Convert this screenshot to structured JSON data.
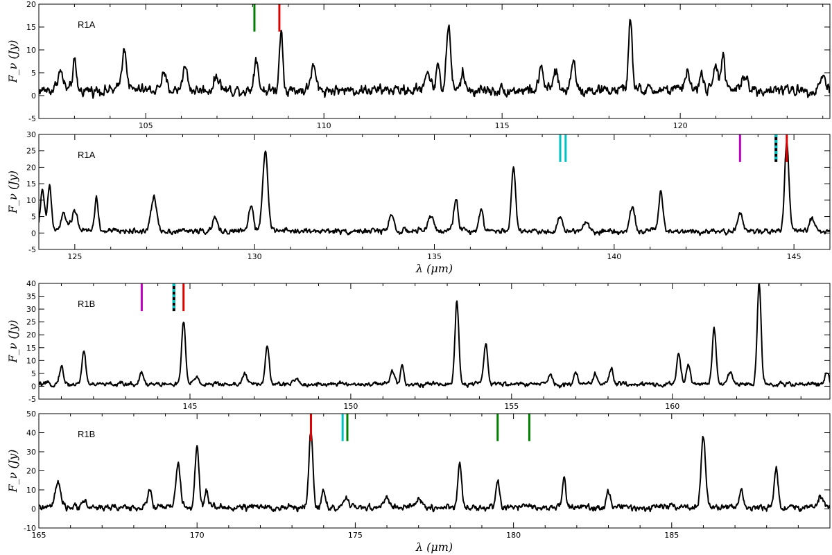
{
  "chart_data": [
    {
      "type": "line",
      "label": "R1A",
      "xlim": [
        102,
        124.2
      ],
      "ylim": [
        -5,
        20
      ],
      "xticks": [
        105,
        110,
        115,
        120
      ],
      "yticks": [
        -5,
        0,
        5,
        10,
        15,
        20
      ],
      "ylabel": "F_ν (Jy)",
      "xlabel": "",
      "baseline": 1.2,
      "noise": 1.1,
      "peaks": [
        [
          102.6,
          4,
          0.08
        ],
        [
          103.0,
          6,
          0.05
        ],
        [
          104.4,
          9,
          0.07
        ],
        [
          105.5,
          3,
          0.08
        ],
        [
          106.1,
          5,
          0.07
        ],
        [
          107.0,
          3,
          0.08
        ],
        [
          108.1,
          7,
          0.06
        ],
        [
          108.8,
          13,
          0.05
        ],
        [
          109.7,
          5,
          0.07
        ],
        [
          112.9,
          4,
          0.08
        ],
        [
          113.2,
          6,
          0.05
        ],
        [
          113.5,
          14,
          0.06
        ],
        [
          113.9,
          4,
          0.05
        ],
        [
          116.1,
          5,
          0.06
        ],
        [
          116.5,
          4,
          0.06
        ],
        [
          117.0,
          7,
          0.06
        ],
        [
          118.6,
          16,
          0.05
        ],
        [
          120.2,
          4,
          0.07
        ],
        [
          120.6,
          4,
          0.05
        ],
        [
          121.0,
          6,
          0.06
        ],
        [
          121.2,
          8,
          0.05
        ],
        [
          121.8,
          3,
          0.08
        ],
        [
          124.0,
          3,
          0.08
        ]
      ],
      "markers": [
        {
          "x": 108.05,
          "color": "#008000"
        },
        {
          "x": 108.75,
          "color": "#e00000"
        }
      ]
    },
    {
      "type": "line",
      "label": "R1A",
      "xlim": [
        124,
        146
      ],
      "ylim": [
        -5,
        30
      ],
      "xticks": [
        125,
        130,
        135,
        140,
        145
      ],
      "yticks": [
        -5,
        0,
        5,
        10,
        15,
        20,
        25,
        30
      ],
      "ylabel": "F_ν (Jy)",
      "xlabel": "λ (μm)",
      "baseline": 0.6,
      "noise": 0.8,
      "peaks": [
        [
          124.1,
          12,
          0.06
        ],
        [
          124.3,
          14,
          0.05
        ],
        [
          124.7,
          5,
          0.08
        ],
        [
          125.0,
          6,
          0.08
        ],
        [
          125.6,
          10,
          0.05
        ],
        [
          127.2,
          10,
          0.08
        ],
        [
          128.9,
          4,
          0.06
        ],
        [
          129.9,
          8,
          0.06
        ],
        [
          130.3,
          25,
          0.07
        ],
        [
          133.8,
          5,
          0.07
        ],
        [
          134.9,
          5,
          0.07
        ],
        [
          135.6,
          10,
          0.06
        ],
        [
          136.3,
          7,
          0.06
        ],
        [
          137.2,
          19,
          0.06
        ],
        [
          138.5,
          4,
          0.07
        ],
        [
          139.2,
          3,
          0.08
        ],
        [
          140.5,
          7,
          0.07
        ],
        [
          141.3,
          12,
          0.06
        ],
        [
          143.5,
          6,
          0.06
        ],
        [
          144.8,
          27,
          0.06
        ],
        [
          145.5,
          4,
          0.07
        ]
      ],
      "markers": [
        {
          "x": 138.5,
          "color": "#00c0c0"
        },
        {
          "x": 138.65,
          "color": "#00c0c0"
        },
        {
          "x": 143.5,
          "color": "#c000c0"
        },
        {
          "x": 144.5,
          "color": "dashed"
        },
        {
          "x": 144.8,
          "color": "#e00000"
        }
      ]
    },
    {
      "type": "line",
      "label": "R1B",
      "xlim": [
        140.3,
        164.9
      ],
      "ylim": [
        -5,
        40
      ],
      "xticks": [
        145,
        150,
        155,
        160
      ],
      "yticks": [
        -5,
        0,
        5,
        10,
        15,
        20,
        25,
        30,
        35,
        40
      ],
      "ylabel": "F_ν (Jy)",
      "xlabel": "",
      "baseline": 0.8,
      "noise": 0.8,
      "peaks": [
        [
          141.0,
          7,
          0.06
        ],
        [
          141.7,
          13,
          0.06
        ],
        [
          143.5,
          5,
          0.06
        ],
        [
          144.8,
          24,
          0.06
        ],
        [
          145.2,
          3,
          0.07
        ],
        [
          146.7,
          4,
          0.07
        ],
        [
          147.4,
          15,
          0.06
        ],
        [
          148.3,
          2,
          0.07
        ],
        [
          151.3,
          5,
          0.07
        ],
        [
          151.6,
          8,
          0.05
        ],
        [
          153.3,
          32,
          0.06
        ],
        [
          154.2,
          16,
          0.06
        ],
        [
          156.2,
          4,
          0.06
        ],
        [
          157.0,
          4,
          0.07
        ],
        [
          157.6,
          4,
          0.07
        ],
        [
          158.1,
          6,
          0.06
        ],
        [
          160.2,
          12,
          0.06
        ],
        [
          160.5,
          8,
          0.06
        ],
        [
          161.3,
          22,
          0.06
        ],
        [
          161.8,
          5,
          0.07
        ],
        [
          162.7,
          39,
          0.06
        ],
        [
          164.8,
          4,
          0.07
        ]
      ],
      "markers": [
        {
          "x": 143.5,
          "color": "#c000c0"
        },
        {
          "x": 144.5,
          "color": "dashed"
        },
        {
          "x": 144.8,
          "color": "#e00000"
        }
      ]
    },
    {
      "type": "line",
      "label": "R1B",
      "xlim": [
        165,
        190
      ],
      "ylim": [
        -10,
        50
      ],
      "xticks": [
        165,
        170,
        175,
        180,
        185
      ],
      "yticks": [
        -10,
        0,
        10,
        20,
        30,
        40,
        50
      ],
      "ylabel": "F_ν (Jy)",
      "xlabel": "λ (μm)",
      "baseline": 0.8,
      "noise": 1.6,
      "peaks": [
        [
          165.6,
          13,
          0.08
        ],
        [
          166.4,
          4,
          0.07
        ],
        [
          168.5,
          10,
          0.06
        ],
        [
          169.4,
          23,
          0.07
        ],
        [
          170.0,
          32,
          0.06
        ],
        [
          170.3,
          9,
          0.05
        ],
        [
          173.6,
          41,
          0.06
        ],
        [
          174.0,
          8,
          0.06
        ],
        [
          174.7,
          5,
          0.06
        ],
        [
          176.0,
          6,
          0.07
        ],
        [
          177.0,
          5,
          0.08
        ],
        [
          178.3,
          23,
          0.06
        ],
        [
          179.5,
          13,
          0.06
        ],
        [
          181.6,
          16,
          0.05
        ],
        [
          183.0,
          8,
          0.06
        ],
        [
          186.0,
          37,
          0.07
        ],
        [
          187.2,
          10,
          0.06
        ],
        [
          188.3,
          20,
          0.06
        ],
        [
          189.7,
          6,
          0.07
        ]
      ],
      "markers": [
        {
          "x": 173.6,
          "color": "#e00000"
        },
        {
          "x": 174.6,
          "color": "#00c0c0"
        },
        {
          "x": 174.75,
          "color": "#008000"
        },
        {
          "x": 179.5,
          "color": "#008000"
        },
        {
          "x": 180.5,
          "color": "#008000"
        }
      ]
    }
  ]
}
